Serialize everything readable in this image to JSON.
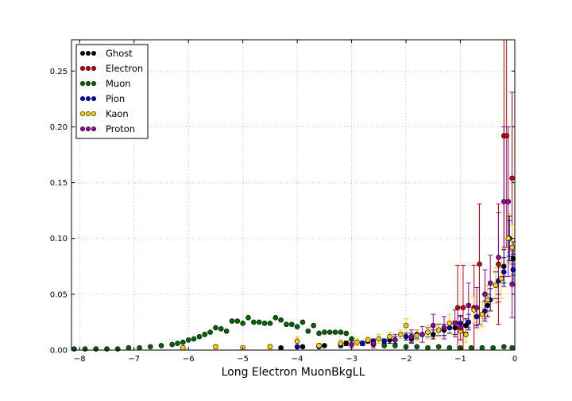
{
  "chart_data": {
    "type": "scatter",
    "title": "",
    "xlabel": "Long Electron MuonBkgLL",
    "ylabel": "",
    "xlim": [
      -8.15,
      0.0
    ],
    "ylim": [
      0.0,
      0.278
    ],
    "x_ticks": [
      -8,
      -7,
      -6,
      -5,
      -4,
      -3,
      -2,
      -1,
      0
    ],
    "x_tick_labels": [
      "−8",
      "−7",
      "−6",
      "−5",
      "−4",
      "−3",
      "−2",
      "−1",
      "0"
    ],
    "y_ticks": [
      0.0,
      0.05,
      0.1,
      0.15,
      0.2,
      0.25
    ],
    "y_tick_labels": [
      "0.00",
      "0.05",
      "0.10",
      "0.15",
      "0.20",
      "0.25"
    ],
    "grid": true,
    "legend_position": "top-left",
    "series": [
      {
        "name": "Ghost",
        "color": "#000000",
        "x": [
          -4.3,
          -3.9,
          -3.5,
          -3.1,
          -2.7,
          -2.3,
          -1.9,
          -1.5,
          -1.3,
          -1.1,
          -0.9,
          -0.7,
          -0.5,
          -0.35,
          -0.2,
          -0.1,
          -0.03
        ],
        "y": [
          0.002,
          0.003,
          0.004,
          0.006,
          0.008,
          0.009,
          0.01,
          0.014,
          0.018,
          0.02,
          0.022,
          0.03,
          0.04,
          0.058,
          0.075,
          0.1,
          0.082
        ],
        "yerr": [
          0.001,
          0.001,
          0.001,
          0.002,
          0.002,
          0.003,
          0.003,
          0.004,
          0.005,
          0.006,
          0.006,
          0.008,
          0.01,
          0.012,
          0.015,
          0.02,
          0.015
        ]
      },
      {
        "name": "Electron",
        "color": "#cc0000",
        "x": [
          -1.05,
          -0.95,
          -0.75,
          -0.65,
          -0.3,
          -0.2,
          -0.15,
          -0.05
        ],
        "y": [
          0.038,
          0.038,
          0.038,
          0.077,
          0.077,
          0.192,
          0.192,
          0.154
        ],
        "yerr": [
          0.038,
          0.038,
          0.038,
          0.054,
          0.054,
          0.1,
          0.1,
          0.077
        ]
      },
      {
        "name": "Muon",
        "color": "#006600",
        "x": [
          -8.1,
          -7.9,
          -7.7,
          -7.5,
          -7.3,
          -7.1,
          -6.9,
          -6.7,
          -6.5,
          -6.3,
          -6.2,
          -6.1,
          -6.0,
          -5.9,
          -5.8,
          -5.7,
          -5.6,
          -5.5,
          -5.4,
          -5.3,
          -5.2,
          -5.1,
          -5.0,
          -4.9,
          -4.8,
          -4.7,
          -4.6,
          -4.5,
          -4.4,
          -4.3,
          -4.2,
          -4.1,
          -4.0,
          -3.9,
          -3.8,
          -3.7,
          -3.6,
          -3.5,
          -3.4,
          -3.3,
          -3.2,
          -3.1,
          -3.0,
          -2.8,
          -2.6,
          -2.4,
          -2.2,
          -2.0,
          -1.8,
          -1.6,
          -1.4,
          -1.2,
          -1.0,
          -0.8,
          -0.6,
          -0.4,
          -0.2,
          -0.05
        ],
        "y": [
          0.001,
          0.001,
          0.001,
          0.001,
          0.001,
          0.002,
          0.002,
          0.003,
          0.004,
          0.005,
          0.006,
          0.007,
          0.009,
          0.01,
          0.012,
          0.014,
          0.016,
          0.02,
          0.019,
          0.017,
          0.026,
          0.026,
          0.024,
          0.029,
          0.025,
          0.025,
          0.024,
          0.024,
          0.029,
          0.027,
          0.023,
          0.023,
          0.021,
          0.025,
          0.017,
          0.022,
          0.015,
          0.016,
          0.016,
          0.016,
          0.016,
          0.015,
          0.01,
          0.006,
          0.005,
          0.004,
          0.004,
          0.003,
          0.003,
          0.002,
          0.003,
          0.002,
          0.002,
          0.002,
          0.002,
          0.002,
          0.003,
          0.002
        ],
        "yerr": []
      },
      {
        "name": "Pion",
        "color": "#0000cc",
        "x": [
          -4.0,
          -3.6,
          -3.2,
          -2.8,
          -2.6,
          -2.4,
          -2.2,
          -2.0,
          -1.9,
          -1.8,
          -1.6,
          -1.4,
          -1.2,
          -1.0,
          -0.85,
          -0.7,
          -0.55,
          -0.45,
          -0.3,
          -0.2,
          -0.1,
          -0.03
        ],
        "y": [
          0.003,
          0.003,
          0.004,
          0.006,
          0.008,
          0.008,
          0.009,
          0.012,
          0.012,
          0.014,
          0.016,
          0.018,
          0.02,
          0.024,
          0.025,
          0.03,
          0.035,
          0.045,
          0.062,
          0.07,
          0.1,
          0.072
        ],
        "yerr": [
          0.001,
          0.001,
          0.001,
          0.002,
          0.002,
          0.002,
          0.003,
          0.003,
          0.003,
          0.004,
          0.004,
          0.005,
          0.005,
          0.006,
          0.007,
          0.008,
          0.009,
          0.01,
          0.012,
          0.013,
          0.016,
          0.014
        ]
      },
      {
        "name": "Kaon",
        "color": "#ffcc00",
        "x": [
          -6.1,
          -5.5,
          -5.0,
          -4.5,
          -4.0,
          -3.6,
          -3.2,
          -2.9,
          -2.7,
          -2.5,
          -2.3,
          -2.1,
          -2.0,
          -1.8,
          -1.6,
          -1.4,
          -1.2,
          -1.0,
          -0.9,
          -0.75,
          -0.6,
          -0.5,
          -0.35,
          -0.25,
          -0.12,
          -0.05
        ],
        "y": [
          0.002,
          0.003,
          0.002,
          0.003,
          0.008,
          0.004,
          0.006,
          0.007,
          0.009,
          0.01,
          0.012,
          0.014,
          0.022,
          0.013,
          0.016,
          0.018,
          0.024,
          0.017,
          0.014,
          0.036,
          0.032,
          0.045,
          0.058,
          0.064,
          0.1,
          0.092
        ],
        "yerr": [
          0.001,
          0.002,
          0.001,
          0.002,
          0.004,
          0.002,
          0.003,
          0.003,
          0.003,
          0.004,
          0.004,
          0.004,
          0.006,
          0.005,
          0.006,
          0.006,
          0.008,
          0.007,
          0.007,
          0.012,
          0.011,
          0.013,
          0.016,
          0.018,
          0.022,
          0.02
        ]
      },
      {
        "name": "Proton",
        "color": "#990099",
        "x": [
          -3.0,
          -2.6,
          -2.2,
          -1.9,
          -1.7,
          -1.5,
          -1.3,
          -1.1,
          -1.0,
          -0.85,
          -0.7,
          -0.55,
          -0.45,
          -0.3,
          -0.2,
          -0.12,
          -0.05
        ],
        "y": [
          0.005,
          0.006,
          0.009,
          0.012,
          0.014,
          0.022,
          0.02,
          0.024,
          0.02,
          0.04,
          0.038,
          0.05,
          0.06,
          0.083,
          0.133,
          0.133,
          0.059
        ],
        "yerr": [
          0.003,
          0.004,
          0.005,
          0.006,
          0.007,
          0.01,
          0.01,
          0.012,
          0.011,
          0.02,
          0.018,
          0.022,
          0.025,
          0.04,
          0.067,
          0.067,
          0.03
        ]
      }
    ]
  }
}
